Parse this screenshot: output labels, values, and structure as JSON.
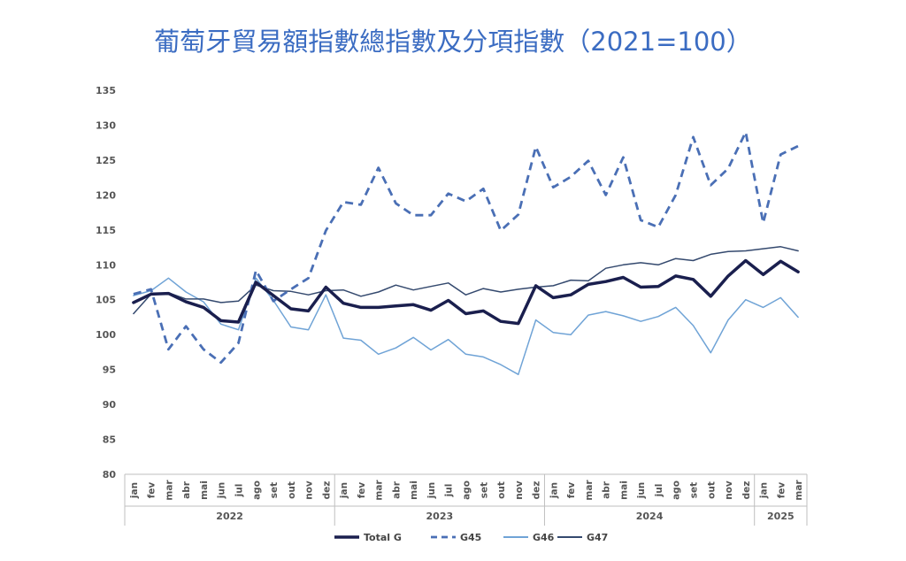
{
  "chart_data": {
    "type": "line",
    "title": "葡萄牙貿易額指數總指數及分項指數（2021=100）",
    "xlabel": "",
    "ylabel": "",
    "ylim": [
      80,
      135
    ],
    "yticks": [
      80,
      85,
      90,
      95,
      100,
      105,
      110,
      115,
      120,
      125,
      130,
      135
    ],
    "grid": false,
    "legend_position": "bottom",
    "title_color": "#3b6cc2",
    "years": [
      {
        "label": "2022",
        "count": 12
      },
      {
        "label": "2023",
        "count": 12
      },
      {
        "label": "2024",
        "count": 12
      },
      {
        "label": "2025",
        "count": 3
      }
    ],
    "categories": [
      "jan",
      "fev",
      "mar",
      "abr",
      "mai",
      "jun",
      "jul",
      "ago",
      "set",
      "out",
      "nov",
      "dez",
      "jan",
      "fev",
      "mar",
      "abr",
      "mai",
      "jun",
      "jul",
      "ago",
      "set",
      "out",
      "nov",
      "dez",
      "jan",
      "fev",
      "mar",
      "abr",
      "mai",
      "jun",
      "jul",
      "ago",
      "set",
      "out",
      "nov",
      "dez",
      "jan",
      "fev",
      "mar"
    ],
    "series": [
      {
        "name": "Total G",
        "color": "#1a1f4e",
        "dash": "solid",
        "width": 3.5,
        "values": [
          104.6,
          105.8,
          105.9,
          104.7,
          103.9,
          102.0,
          101.8,
          107.5,
          105.6,
          103.7,
          103.4,
          106.8,
          104.5,
          103.9,
          103.9,
          104.1,
          104.3,
          103.5,
          104.9,
          103.0,
          103.4,
          101.9,
          101.6,
          107.0,
          105.3,
          105.7,
          107.2,
          107.6,
          108.2,
          106.8,
          106.9,
          108.4,
          107.9,
          105.5,
          108.4,
          110.6,
          108.6,
          110.5,
          109.0
        ]
      },
      {
        "name": "G45",
        "color": "#4a6fb5",
        "dash": "dashed",
        "width": 2.8,
        "values": [
          105.8,
          106.5,
          97.9,
          101.2,
          97.9,
          96.0,
          98.8,
          109.2,
          104.8,
          106.5,
          108.1,
          114.9,
          119.0,
          118.6,
          123.9,
          118.8,
          117.1,
          117.1,
          120.2,
          119.1,
          120.9,
          114.9,
          117.2,
          126.9,
          121.1,
          122.6,
          124.9,
          120.0,
          125.4,
          116.4,
          115.4,
          120.0,
          128.3,
          121.4,
          123.8,
          129.0,
          116.0,
          125.8,
          127.0
        ]
      },
      {
        "name": "G46",
        "color": "#6fa3d6",
        "dash": "solid",
        "width": 1.5,
        "values": [
          105.6,
          106.3,
          108.1,
          106.1,
          104.7,
          101.5,
          100.7,
          108.1,
          104.9,
          101.1,
          100.7,
          105.7,
          99.5,
          99.2,
          97.2,
          98.1,
          99.6,
          97.8,
          99.3,
          97.2,
          96.8,
          95.7,
          94.3,
          102.1,
          100.3,
          100.0,
          102.8,
          103.3,
          102.7,
          101.9,
          102.6,
          103.9,
          101.3,
          97.4,
          102.1,
          105.0,
          103.9,
          105.3,
          102.5
        ]
      },
      {
        "name": "G47",
        "color": "#34496e",
        "dash": "solid",
        "width": 1.5,
        "values": [
          103.0,
          105.8,
          106.0,
          105.1,
          105.1,
          104.6,
          104.8,
          107.1,
          106.3,
          106.2,
          105.7,
          106.3,
          106.4,
          105.5,
          106.1,
          107.1,
          106.4,
          106.9,
          107.4,
          105.7,
          106.6,
          106.1,
          106.5,
          106.8,
          107.0,
          107.8,
          107.7,
          109.5,
          110.0,
          110.3,
          110.0,
          110.9,
          110.6,
          111.5,
          111.9,
          112.0,
          112.3,
          112.6,
          112.0
        ]
      }
    ]
  }
}
